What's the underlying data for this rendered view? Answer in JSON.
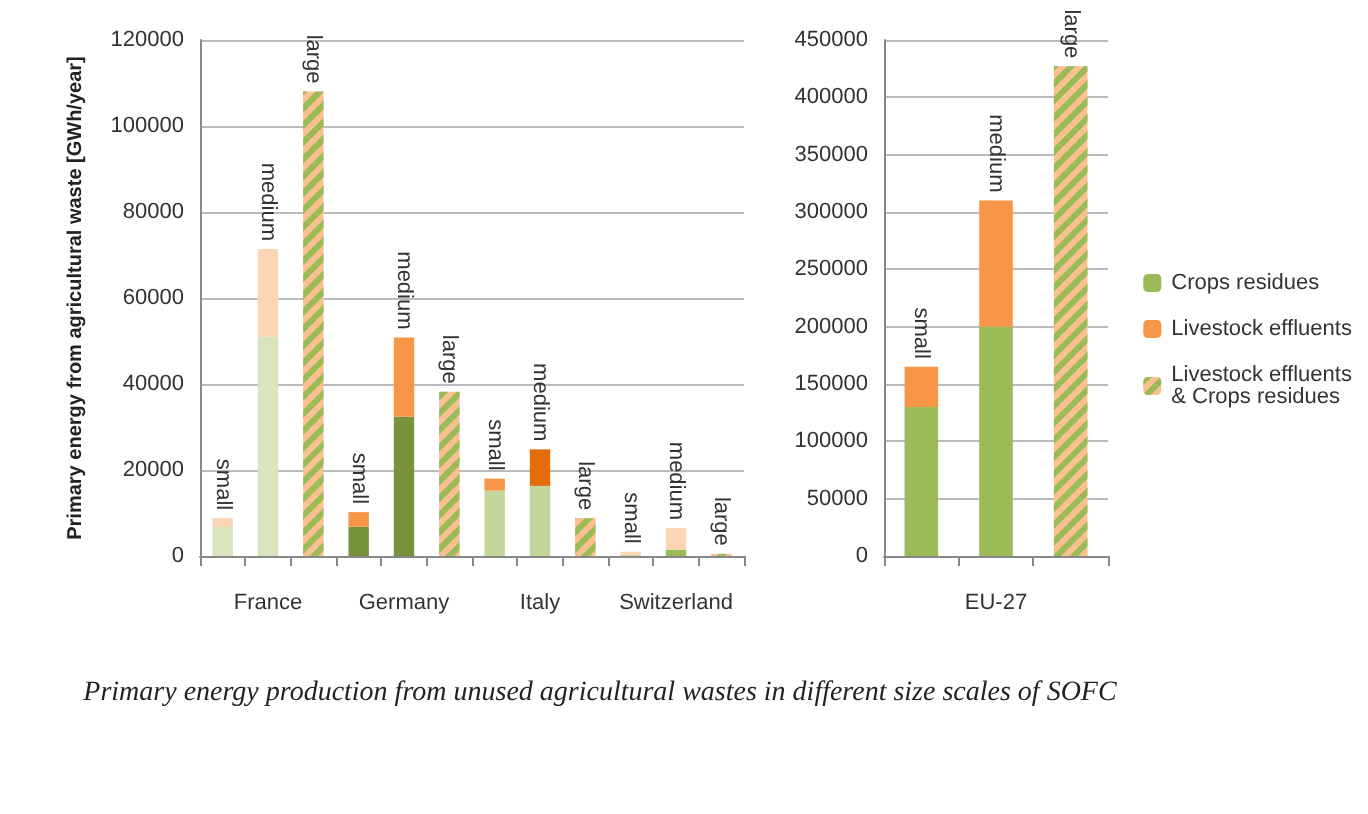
{
  "chart_data": [
    {
      "type": "bar",
      "stacked": true,
      "ylabel": "Primary energy from agricultural waste [GWh/year]",
      "categories": [
        null,
        "France",
        null,
        null,
        "Germany",
        null,
        null,
        "Italy",
        null,
        null,
        "Switzerland",
        null
      ],
      "ylim": [
        0,
        120000
      ],
      "yticks": [
        0,
        20000,
        40000,
        60000,
        80000,
        100000,
        120000
      ],
      "grid": "y",
      "annotations": [
        "Primary energy production from unused agricultural wastes in different size scales of SOFC"
      ],
      "series": [
        {
          "color": "#9bbb59",
          "values": [
            6800,
            51000,
            null,
            6800,
            32400,
            null,
            15200,
            16300,
            null,
            300,
            1500,
            null
          ],
          "colors": [
            "#d7e4bd",
            "#d7e4bd",
            null,
            "#77933c",
            "#77933c",
            null,
            "#c3d69b",
            "#c3d69b",
            null,
            "#c3d69b",
            "#9bbb59",
            null
          ]
        },
        {
          "color": "#f79646",
          "values": [
            2000,
            20400,
            null,
            3400,
            18400,
            null,
            2800,
            8500,
            null,
            700,
            5000,
            null
          ],
          "colors": [
            "#fcd5b5",
            "#fcd5b5",
            null,
            "#f79646",
            "#f79646",
            null,
            "#f79646",
            "#e46c0a",
            null,
            "#fcd5b5",
            "#fcd5b5",
            null
          ],
          "value_labels": [
            "small",
            "medium",
            null,
            "small",
            "medium",
            null,
            "small",
            "medium",
            null,
            "small",
            "medium",
            null
          ]
        },
        {
          "color": "#fac090",
          "values": [
            null,
            null,
            108000,
            null,
            null,
            38200,
            null,
            null,
            8800,
            null,
            null,
            500
          ],
          "value_labels": [
            null,
            null,
            "large",
            null,
            null,
            "large",
            null,
            null,
            "large",
            null,
            null,
            "large"
          ]
        }
      ]
    },
    {
      "type": "bar",
      "stacked": true,
      "categories": [
        null,
        "EU-27",
        null
      ],
      "ylim": [
        0,
        450000
      ],
      "yticks": [
        0,
        50000,
        100000,
        150000,
        200000,
        250000,
        300000,
        350000,
        400000,
        450000
      ],
      "grid": "y",
      "legend": "right",
      "series": [
        {
          "name": "Crops residues",
          "color": "#9bbb59",
          "values": [
            130000,
            200000,
            null
          ]
        },
        {
          "name": "Livestock effluents",
          "color": "#f79646",
          "values": [
            35000,
            110000,
            null
          ],
          "value_labels": [
            "small",
            "medium",
            null
          ]
        },
        {
          "name": "Livestock effluents & Crops residues",
          "color": "#fac090",
          "values": [
            null,
            null,
            427000
          ],
          "value_labels": [
            null,
            null,
            "large"
          ]
        }
      ]
    }
  ]
}
